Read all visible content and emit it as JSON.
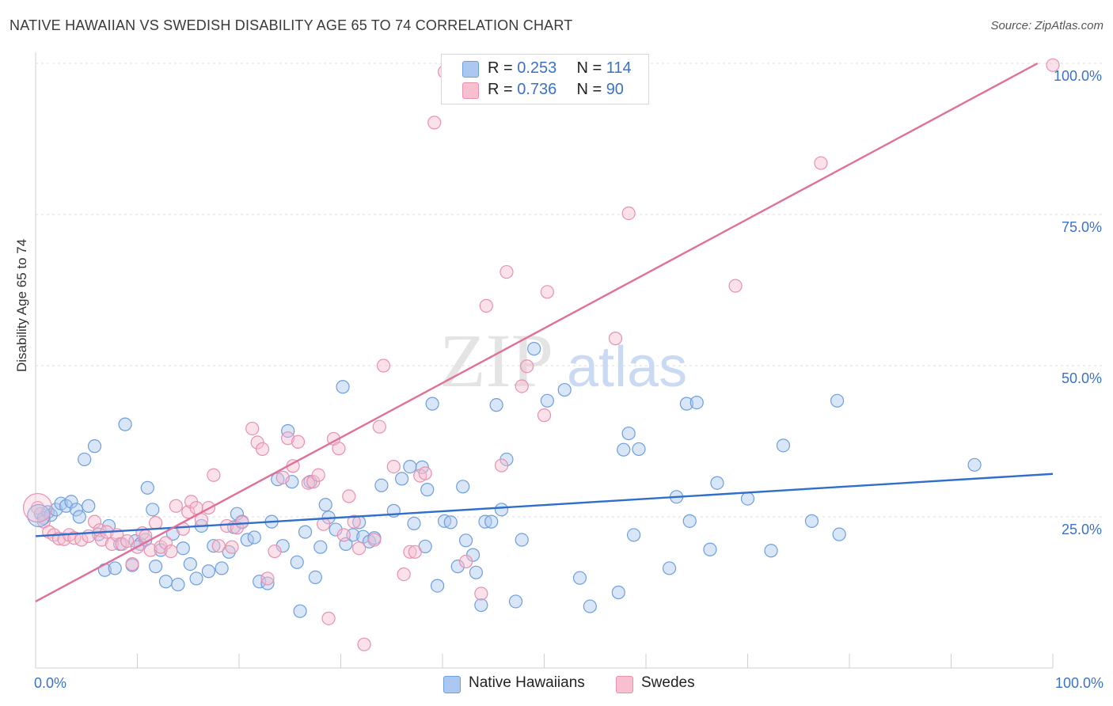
{
  "header": {
    "title": "NATIVE HAWAIIAN VS SWEDISH DISABILITY AGE 65 TO 74 CORRELATION CHART",
    "source": "Source: ZipAtlas.com"
  },
  "watermark": {
    "zip": "ZIP",
    "atlas": "atlas"
  },
  "legend": {
    "series": [
      {
        "r_label": "R = ",
        "r_value": "0.253",
        "n_label": "N = ",
        "n_value": "114"
      },
      {
        "r_label": "R = ",
        "r_value": "0.736",
        "n_label": "N = ",
        "n_value": "90"
      }
    ]
  },
  "colors": {
    "blue_fill": "#aac8f0",
    "blue_stroke": "#6d9ede",
    "blue_line": "#2f6fcb",
    "pink_fill": "#f7bfd0",
    "pink_stroke": "#e890ad",
    "pink_line": "#e0709a",
    "grid": "#dddddd",
    "axis_text": "#3b72c8"
  },
  "chart_data": {
    "type": "scatter",
    "title": "NATIVE HAWAIIAN VS SWEDISH DISABILITY AGE 65 TO 74 CORRELATION CHART",
    "xlabel": "",
    "ylabel": "Disability Age 65 to 74",
    "xlim": [
      0,
      100
    ],
    "ylim": [
      0,
      100
    ],
    "x_tick_labels": [
      "0.0%",
      "100.0%"
    ],
    "y_tick_labels": [
      "25.0%",
      "50.0%",
      "75.0%",
      "100.0%"
    ],
    "y_ticks": [
      25,
      50,
      75,
      100
    ],
    "grid": true,
    "legend_position": "top-center",
    "series": [
      {
        "name": "Native Hawaiians",
        "color": "#6d9ede",
        "r": 0.253,
        "n": 114,
        "trend": [
          [
            0,
            21.8
          ],
          [
            100,
            32.1
          ]
        ],
        "points": [
          [
            0.5,
            25.5
          ],
          [
            0.8,
            24.8
          ],
          [
            1.2,
            25.8
          ],
          [
            1.5,
            25.3
          ],
          [
            2.0,
            26.2
          ],
          [
            2.5,
            27.2
          ],
          [
            3.0,
            26.8
          ],
          [
            3.5,
            27.5
          ],
          [
            4.0,
            26.2
          ],
          [
            4.3,
            25.0
          ],
          [
            4.8,
            34.5
          ],
          [
            5.2,
            26.8
          ],
          [
            5.8,
            36.7
          ],
          [
            6.2,
            22.1
          ],
          [
            6.8,
            16.2
          ],
          [
            7.2,
            23.5
          ],
          [
            7.8,
            16.5
          ],
          [
            8.3,
            20.5
          ],
          [
            8.8,
            40.3
          ],
          [
            9.5,
            17.0
          ],
          [
            9.8,
            21.0
          ],
          [
            10.3,
            20.5
          ],
          [
            10.8,
            21.2
          ],
          [
            11.0,
            29.8
          ],
          [
            11.5,
            26.2
          ],
          [
            11.8,
            16.8
          ],
          [
            12.3,
            19.5
          ],
          [
            12.8,
            14.3
          ],
          [
            13.5,
            22.2
          ],
          [
            14.0,
            13.8
          ],
          [
            14.5,
            19.8
          ],
          [
            15.2,
            17.2
          ],
          [
            15.8,
            14.8
          ],
          [
            16.3,
            23.5
          ],
          [
            17.0,
            16.0
          ],
          [
            17.5,
            20.2
          ],
          [
            18.3,
            16.5
          ],
          [
            19.0,
            19.2
          ],
          [
            19.5,
            23.3
          ],
          [
            19.8,
            25.5
          ],
          [
            20.3,
            24.2
          ],
          [
            20.8,
            21.2
          ],
          [
            21.5,
            21.6
          ],
          [
            22.0,
            14.3
          ],
          [
            22.8,
            14.0
          ],
          [
            23.2,
            24.2
          ],
          [
            23.8,
            31.2
          ],
          [
            24.3,
            20.2
          ],
          [
            24.8,
            39.2
          ],
          [
            25.2,
            30.8
          ],
          [
            25.7,
            17.5
          ],
          [
            26.0,
            9.4
          ],
          [
            26.5,
            22.5
          ],
          [
            27.0,
            30.8
          ],
          [
            27.5,
            15.0
          ],
          [
            28.0,
            20.0
          ],
          [
            28.5,
            27.0
          ],
          [
            28.8,
            24.9
          ],
          [
            29.5,
            22.9
          ],
          [
            30.2,
            46.5
          ],
          [
            30.5,
            20.5
          ],
          [
            31.2,
            22.0
          ],
          [
            31.8,
            24.1
          ],
          [
            32.2,
            21.7
          ],
          [
            32.8,
            20.9
          ],
          [
            33.3,
            21.5
          ],
          [
            34.0,
            30.2
          ],
          [
            35.2,
            26.0
          ],
          [
            36.0,
            31.3
          ],
          [
            36.8,
            33.3
          ],
          [
            37.2,
            23.9
          ],
          [
            38.0,
            33.2
          ],
          [
            38.3,
            20.1
          ],
          [
            38.5,
            29.5
          ],
          [
            39.0,
            43.7
          ],
          [
            39.5,
            13.6
          ],
          [
            40.2,
            24.3
          ],
          [
            40.8,
            24.1
          ],
          [
            41.5,
            16.8
          ],
          [
            42.0,
            30.0
          ],
          [
            42.3,
            21.1
          ],
          [
            43.0,
            18.7
          ],
          [
            43.3,
            15.8
          ],
          [
            43.8,
            10.4
          ],
          [
            44.2,
            24.2
          ],
          [
            44.8,
            24.2
          ],
          [
            45.3,
            43.5
          ],
          [
            45.8,
            26.2
          ],
          [
            46.3,
            34.5
          ],
          [
            47.2,
            11.0
          ],
          [
            47.8,
            21.2
          ],
          [
            49.0,
            52.8
          ],
          [
            50.3,
            44.2
          ],
          [
            52.0,
            46.0
          ],
          [
            53.5,
            14.9
          ],
          [
            54.5,
            10.2
          ],
          [
            57.3,
            12.5
          ],
          [
            57.8,
            36.1
          ],
          [
            58.3,
            38.8
          ],
          [
            58.8,
            22.0
          ],
          [
            59.3,
            36.2
          ],
          [
            62.3,
            16.5
          ],
          [
            63.0,
            28.3
          ],
          [
            64.0,
            43.7
          ],
          [
            64.3,
            24.3
          ],
          [
            65.0,
            43.9
          ],
          [
            66.3,
            19.6
          ],
          [
            67.0,
            30.6
          ],
          [
            70.0,
            28.0
          ],
          [
            72.3,
            19.4
          ],
          [
            73.5,
            36.8
          ],
          [
            76.3,
            24.3
          ],
          [
            78.8,
            44.2
          ],
          [
            79.0,
            22.1
          ],
          [
            92.3,
            33.6
          ]
        ]
      },
      {
        "name": "Swedes",
        "color": "#e890ad",
        "r": 0.736,
        "n": 90,
        "trend": [
          [
            0,
            11.0
          ],
          [
            98.5,
            100.0
          ]
        ],
        "points": [
          [
            0.2,
            26.5
          ],
          [
            0.8,
            24.2
          ],
          [
            1.3,
            22.5
          ],
          [
            1.8,
            22.0
          ],
          [
            2.3,
            21.4
          ],
          [
            2.8,
            21.3
          ],
          [
            3.3,
            22.0
          ],
          [
            3.8,
            21.5
          ],
          [
            4.5,
            21.2
          ],
          [
            5.2,
            21.8
          ],
          [
            5.8,
            24.2
          ],
          [
            6.3,
            22.8
          ],
          [
            6.5,
            21.2
          ],
          [
            7.0,
            22.5
          ],
          [
            7.5,
            20.5
          ],
          [
            8.0,
            22.0
          ],
          [
            8.5,
            20.5
          ],
          [
            9.0,
            21.0
          ],
          [
            9.5,
            17.2
          ],
          [
            10.0,
            20.0
          ],
          [
            10.5,
            22.3
          ],
          [
            10.8,
            21.8
          ],
          [
            11.3,
            19.5
          ],
          [
            11.8,
            24.0
          ],
          [
            12.3,
            20.0
          ],
          [
            12.8,
            20.7
          ],
          [
            13.3,
            19.3
          ],
          [
            13.8,
            26.8
          ],
          [
            14.5,
            23.0
          ],
          [
            15.0,
            25.8
          ],
          [
            15.3,
            27.5
          ],
          [
            15.8,
            26.5
          ],
          [
            16.3,
            24.5
          ],
          [
            17.0,
            26.5
          ],
          [
            17.5,
            31.9
          ],
          [
            18.0,
            20.2
          ],
          [
            18.8,
            23.5
          ],
          [
            19.3,
            20.0
          ],
          [
            19.8,
            23.2
          ],
          [
            20.3,
            24.1
          ],
          [
            21.3,
            39.6
          ],
          [
            21.8,
            37.3
          ],
          [
            22.3,
            36.2
          ],
          [
            22.8,
            14.8
          ],
          [
            23.5,
            19.3
          ],
          [
            24.3,
            31.5
          ],
          [
            24.8,
            38.0
          ],
          [
            25.3,
            33.4
          ],
          [
            25.8,
            37.4
          ],
          [
            26.8,
            30.6
          ],
          [
            27.3,
            30.8
          ],
          [
            27.8,
            31.9
          ],
          [
            28.3,
            23.8
          ],
          [
            28.8,
            8.2
          ],
          [
            29.3,
            37.9
          ],
          [
            29.8,
            36.3
          ],
          [
            30.3,
            22.0
          ],
          [
            30.8,
            28.4
          ],
          [
            31.3,
            24.2
          ],
          [
            31.8,
            19.8
          ],
          [
            32.3,
            3.9
          ],
          [
            33.3,
            21.2
          ],
          [
            33.8,
            39.9
          ],
          [
            34.2,
            50.0
          ],
          [
            35.2,
            33.3
          ],
          [
            36.2,
            15.5
          ],
          [
            36.8,
            19.2
          ],
          [
            37.3,
            19.2
          ],
          [
            37.8,
            31.8
          ],
          [
            38.3,
            32.2
          ],
          [
            39.2,
            90.2
          ],
          [
            40.2,
            98.6
          ],
          [
            42.3,
            17.6
          ],
          [
            43.8,
            12.3
          ],
          [
            44.3,
            59.9
          ],
          [
            45.8,
            33.5
          ],
          [
            46.3,
            65.5
          ],
          [
            47.8,
            46.6
          ],
          [
            48.3,
            49.9
          ],
          [
            50.0,
            41.8
          ],
          [
            50.3,
            62.2
          ],
          [
            53.2,
            98.9
          ],
          [
            53.8,
            98.8
          ],
          [
            57.0,
            54.5
          ],
          [
            58.3,
            75.2
          ],
          [
            68.8,
            63.2
          ],
          [
            77.2,
            83.5
          ],
          [
            100.0,
            99.7
          ]
        ]
      }
    ]
  }
}
